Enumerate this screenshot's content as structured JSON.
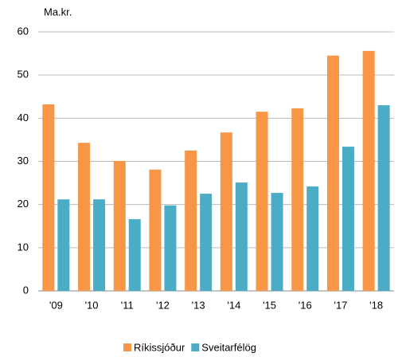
{
  "chart_data": {
    "type": "bar",
    "y_label": "Ma.kr.",
    "categories": [
      "'09",
      "'10",
      "'11",
      "'12",
      "'13",
      "'14",
      "'15",
      "'16",
      "'17",
      "'18"
    ],
    "series": [
      {
        "name": "Ríkissjóður",
        "color": "#f79646",
        "values": [
          43.2,
          34.3,
          30.1,
          28.1,
          32.5,
          36.7,
          41.5,
          42.3,
          54.5,
          55.6
        ]
      },
      {
        "name": "Sveitarfélög",
        "color": "#4bacc6",
        "values": [
          21.2,
          21.2,
          16.6,
          19.8,
          22.5,
          25.1,
          22.7,
          24.2,
          33.4,
          43.0
        ]
      }
    ],
    "ylim": [
      0,
      60
    ],
    "yticks": [
      0,
      10,
      20,
      30,
      40,
      50,
      60
    ],
    "grid": true,
    "legend": "bottom"
  }
}
